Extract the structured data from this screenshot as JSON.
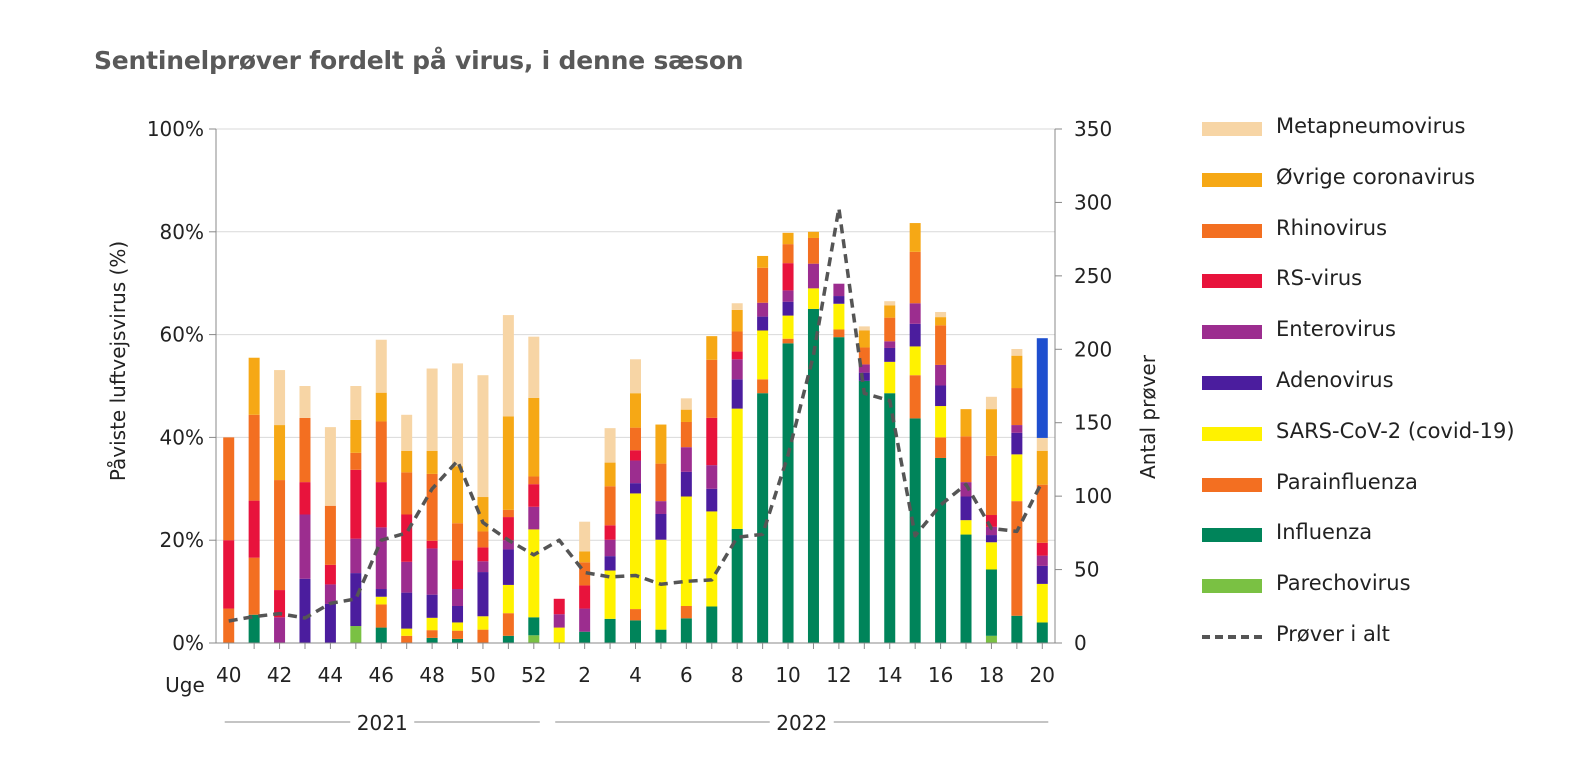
{
  "chart_data": {
    "type": "bar",
    "stacked": true,
    "title": "Sentinelprøver fordelt på virus, i denne sæson",
    "ylabel": "Påviste luftvejsvirus (%)",
    "y2label": "Antal prøver",
    "xprefix": "Uge",
    "ylim": [
      0,
      100
    ],
    "y2lim": [
      0,
      350
    ],
    "yticks": [
      "0%",
      "20%",
      "40%",
      "60%",
      "80%",
      "100%"
    ],
    "y2ticks": [
      "0",
      "50",
      "100",
      "150",
      "200",
      "250",
      "300",
      "350"
    ],
    "categories": [
      "40",
      "41",
      "42",
      "43",
      "44",
      "45",
      "46",
      "47",
      "48",
      "49",
      "50",
      "51",
      "52",
      "1",
      "2",
      "3",
      "4",
      "5",
      "6",
      "7",
      "8",
      "9",
      "10",
      "11",
      "12",
      "13",
      "14",
      "15",
      "16",
      "17",
      "18",
      "19",
      "20"
    ],
    "tick_labels": [
      "40",
      "42",
      "44",
      "46",
      "48",
      "50",
      "52",
      "2",
      "4",
      "6",
      "8",
      "10",
      "12",
      "14",
      "16",
      "18",
      "20"
    ],
    "years": [
      "2021",
      "2022"
    ],
    "series": [
      {
        "name": "Parechovirus",
        "color": "#7ac143",
        "values": [
          0,
          0,
          0,
          0,
          0,
          3.3,
          0,
          0,
          0,
          0,
          0,
          0,
          1.5,
          0,
          0,
          0,
          0,
          0,
          0,
          0,
          0,
          0,
          0,
          0,
          0,
          0,
          0,
          0,
          0,
          0,
          1.4,
          0,
          0
        ]
      },
      {
        "name": "Influenza",
        "color": "#00845a",
        "values": [
          0,
          5.5,
          0,
          0,
          0,
          0,
          3,
          0,
          1,
          0.8,
          0,
          1.4,
          3.5,
          0,
          2.2,
          4.7,
          4.4,
          2.6,
          4.8,
          7.1,
          22.2,
          48.6,
          58.3,
          65,
          59.5,
          51,
          48.6,
          43.7,
          36,
          21.1,
          12.9,
          5.3,
          4
        ]
      },
      {
        "name": "Parainfluenza",
        "color": "#f36f21",
        "values": [
          6.7,
          11.1,
          0,
          0,
          0,
          0,
          4.5,
          1.4,
          1.5,
          1.6,
          2.6,
          4.4,
          0,
          0,
          0,
          0,
          2.2,
          0,
          2.4,
          0,
          0,
          2.7,
          0.9,
          0,
          1.5,
          0,
          0,
          8.4,
          4,
          0,
          0,
          22.3,
          0
        ]
      },
      {
        "name": "SARS-CoV-2 (covid-19)",
        "color": "#fff200",
        "values": [
          0,
          0,
          0,
          0,
          0,
          0,
          1.5,
          1.4,
          2.4,
          1.6,
          2.6,
          5.5,
          17.1,
          3,
          0,
          9.4,
          22.5,
          17.5,
          21.3,
          18.5,
          23.4,
          9.5,
          4.5,
          4,
          5,
          0,
          6.1,
          5.6,
          6.1,
          2.8,
          5.3,
          9.1,
          7.5
        ]
      },
      {
        "name": "Adenovirus",
        "color": "#4b1d9e",
        "values": [
          0,
          0,
          0,
          12.5,
          7.6,
          10.3,
          1.5,
          7,
          4.5,
          3.2,
          8.6,
          6.9,
          0,
          0,
          0,
          2.8,
          2,
          5,
          4.8,
          4.4,
          5.7,
          2.7,
          2.7,
          0,
          1.5,
          1.6,
          2.7,
          4.4,
          4,
          4.6,
          1.4,
          4.2,
          3.5
        ]
      },
      {
        "name": "Enterovirus",
        "color": "#9c2d8f",
        "values": [
          0,
          0,
          5,
          12.5,
          3.8,
          6.7,
          12,
          6,
          9,
          3.3,
          2.1,
          1.8,
          4.4,
          2.6,
          4.5,
          3.2,
          4.4,
          2.5,
          4.8,
          4.6,
          3.9,
          2.7,
          2.2,
          4.8,
          2.4,
          1.6,
          1.3,
          4,
          4,
          2.8,
          1.6,
          1.5,
          2
        ]
      },
      {
        "name": "RS-virus",
        "color": "#e8133c",
        "values": [
          13.3,
          11.1,
          5.3,
          6.3,
          3.8,
          13.4,
          8.8,
          9.2,
          1.5,
          5.6,
          2.7,
          4.5,
          4.4,
          3,
          4.5,
          2.8,
          2,
          0,
          0,
          9.2,
          1.5,
          0,
          5.3,
          0,
          0,
          0,
          0,
          0,
          0,
          0,
          2.3,
          0,
          2.5
        ]
      },
      {
        "name": "Rhinovirus",
        "color": "#f36f21",
        "values": [
          20,
          16.7,
          21.4,
          12.5,
          11.5,
          3.3,
          11.8,
          8.2,
          13,
          7.2,
          3.1,
          1.4,
          1.5,
          0,
          4.5,
          7.6,
          4.4,
          7.3,
          4.9,
          11.3,
          3.9,
          6.8,
          3.7,
          5,
          0,
          3.3,
          4.6,
          10,
          7.7,
          8.9,
          11.5,
          7.2,
          11.3
        ]
      },
      {
        "name": "Øvrige coronavirus",
        "color": "#f6a815",
        "values": [
          0,
          11.1,
          10.7,
          0,
          0,
          6.4,
          5.6,
          4.2,
          4.5,
          11.1,
          6.7,
          18.2,
          15.3,
          0,
          2.1,
          4.6,
          6.7,
          7.6,
          2.4,
          4.6,
          4.2,
          2.3,
          2.2,
          1.2,
          0,
          3.3,
          2.4,
          5.6,
          1.6,
          5.3,
          9.1,
          6.3,
          6.6
        ]
      },
      {
        "name": "Metapneumovirus",
        "color": "#f7d5a5",
        "values": [
          0,
          0,
          10.7,
          6.2,
          15.3,
          6.6,
          10.3,
          7,
          16,
          20,
          23.7,
          19.7,
          11.9,
          0,
          5.8,
          6.7,
          6.6,
          0,
          2.2,
          0,
          1.3,
          0,
          0,
          0,
          0,
          0.8,
          0.8,
          0,
          1,
          0,
          2.4,
          1.3,
          2.5
        ]
      },
      {
        "name": "",
        "color": "#1e4fcf",
        "values": [
          0,
          0,
          0,
          0,
          0,
          0,
          0,
          0,
          0,
          0,
          0,
          0,
          0,
          0,
          0,
          0,
          0,
          0,
          0,
          0,
          0,
          0,
          0,
          0,
          0,
          0,
          0,
          0,
          0,
          0,
          0,
          0,
          19.4
        ]
      }
    ],
    "line": {
      "name": "Prøver i alt",
      "color": "#555555",
      "values": [
        15,
        18,
        20,
        17,
        27,
        30,
        70,
        75,
        105,
        124,
        82,
        70,
        60,
        70,
        48,
        45,
        46,
        40,
        42,
        43,
        72,
        74,
        128,
        196,
        296,
        170,
        165,
        73,
        94,
        108,
        78,
        76,
        110
      ]
    },
    "legend": [
      {
        "name": "Metapneumovirus",
        "color": "#f7d5a5"
      },
      {
        "name": "Øvrige coronavirus",
        "color": "#f6a815"
      },
      {
        "name": "Rhinovirus",
        "color": "#f36f21"
      },
      {
        "name": "RS-virus",
        "color": "#e8133c"
      },
      {
        "name": "Enterovirus",
        "color": "#9c2d8f"
      },
      {
        "name": "Adenovirus",
        "color": "#4b1d9e"
      },
      {
        "name": "SARS-CoV-2 (covid-19)",
        "color": "#fff200"
      },
      {
        "name": "Parainfluenza",
        "color": "#f36f21"
      },
      {
        "name": "Influenza",
        "color": "#00845a"
      },
      {
        "name": "Parechovirus",
        "color": "#7ac143"
      },
      {
        "name": "Prøver i alt",
        "color": "#555555",
        "dashed": true
      }
    ]
  }
}
